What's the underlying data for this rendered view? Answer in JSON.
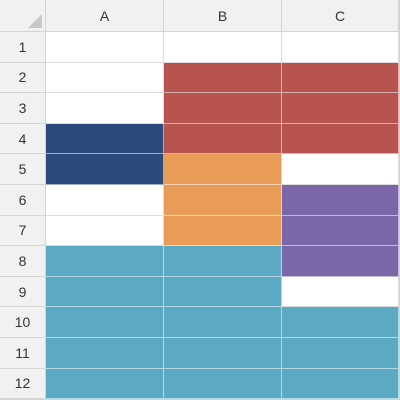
{
  "columns": [
    "A",
    "B",
    "C"
  ],
  "rows": [
    "1",
    "2",
    "3",
    "4",
    "5",
    "6",
    "7",
    "8",
    "9",
    "10",
    "11",
    "12"
  ],
  "colors": {
    "red": "#b85450",
    "navy": "#2c4a7c",
    "orange": "#e99c58",
    "purple": "#7b67a8",
    "teal": "#5ba9c3",
    "white": "#ffffff"
  },
  "cell_fills": [
    [
      "white",
      "white",
      "white"
    ],
    [
      "white",
      "red",
      "red"
    ],
    [
      "white",
      "red",
      "red"
    ],
    [
      "navy",
      "red",
      "red"
    ],
    [
      "navy",
      "orange",
      "white"
    ],
    [
      "white",
      "orange",
      "purple"
    ],
    [
      "white",
      "orange",
      "purple"
    ],
    [
      "teal",
      "teal",
      "purple"
    ],
    [
      "teal",
      "teal",
      "white"
    ],
    [
      "teal",
      "teal",
      "teal"
    ],
    [
      "teal",
      "teal",
      "teal"
    ],
    [
      "teal",
      "teal",
      "teal"
    ]
  ],
  "icons": {
    "corner": "select-all-triangle-icon"
  }
}
